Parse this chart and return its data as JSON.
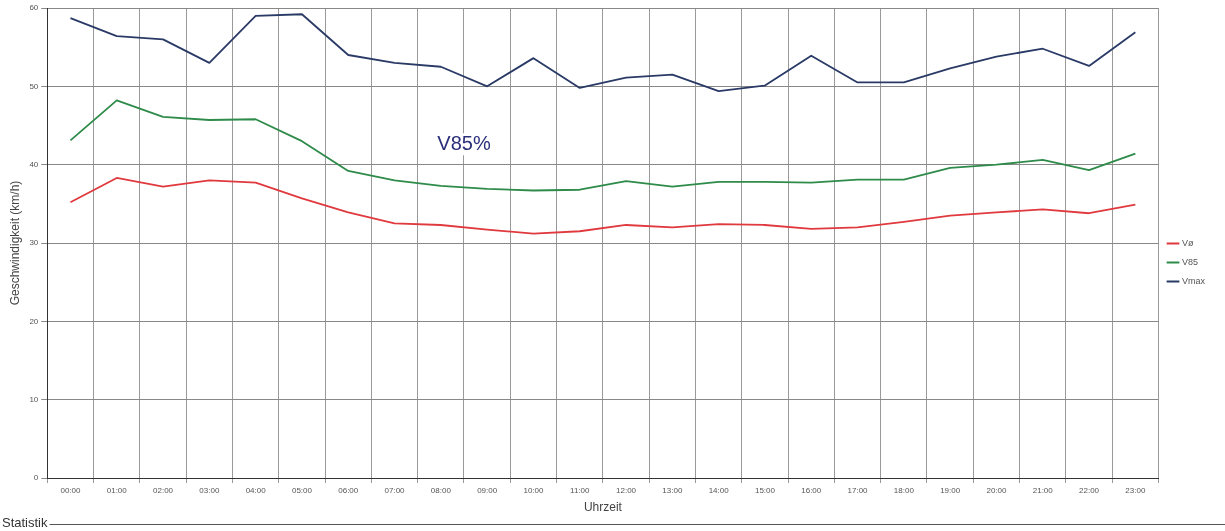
{
  "chart_data": {
    "type": "line",
    "xlabel": "Uhrzeit",
    "ylabel": "Geschwindigkeit (km/h)",
    "categories": [
      "00:00",
      "01:00",
      "02:00",
      "03:00",
      "04:00",
      "05:00",
      "06:00",
      "07:00",
      "08:00",
      "09:00",
      "10:00",
      "11:00",
      "12:00",
      "13:00",
      "14:00",
      "15:00",
      "16:00",
      "17:00",
      "18:00",
      "19:00",
      "20:00",
      "21:00",
      "22:00",
      "23:00"
    ],
    "series": [
      {
        "name": "Vø",
        "color": "#e0393e",
        "values": [
          35.2,
          38.3,
          37.2,
          38.0,
          37.7,
          35.7,
          33.9,
          32.5,
          32.3,
          31.7,
          31.2,
          31.5,
          32.3,
          32.0,
          32.4,
          32.3,
          31.8,
          32.0,
          32.7,
          33.5,
          33.9,
          34.3,
          33.8,
          34.9
        ]
      },
      {
        "name": "V85",
        "color": "#2e8b4a",
        "values": [
          43.1,
          48.2,
          46.1,
          45.7,
          45.8,
          43.0,
          39.2,
          38.0,
          37.3,
          36.9,
          36.7,
          36.8,
          37.9,
          37.2,
          37.8,
          37.8,
          37.7,
          38.1,
          38.1,
          39.6,
          40.0,
          40.6,
          39.3,
          41.4
        ]
      },
      {
        "name": "Vmax",
        "color": "#2a3a66",
        "values": [
          58.7,
          56.4,
          56.0,
          53.0,
          59.0,
          59.2,
          54.0,
          53.0,
          52.5,
          50.0,
          53.6,
          49.8,
          51.1,
          51.5,
          49.4,
          50.1,
          53.9,
          50.5,
          50.5,
          52.3,
          53.8,
          54.8,
          52.6,
          56.9
        ]
      }
    ],
    "ylim": [
      0,
      60
    ],
    "yticks": [
      0,
      10,
      20,
      30,
      40,
      50,
      60
    ],
    "grid": true,
    "legend": "right",
    "marker": "none",
    "line_style": "solid",
    "annotations": [
      "V85%",
      "Statistik"
    ]
  }
}
